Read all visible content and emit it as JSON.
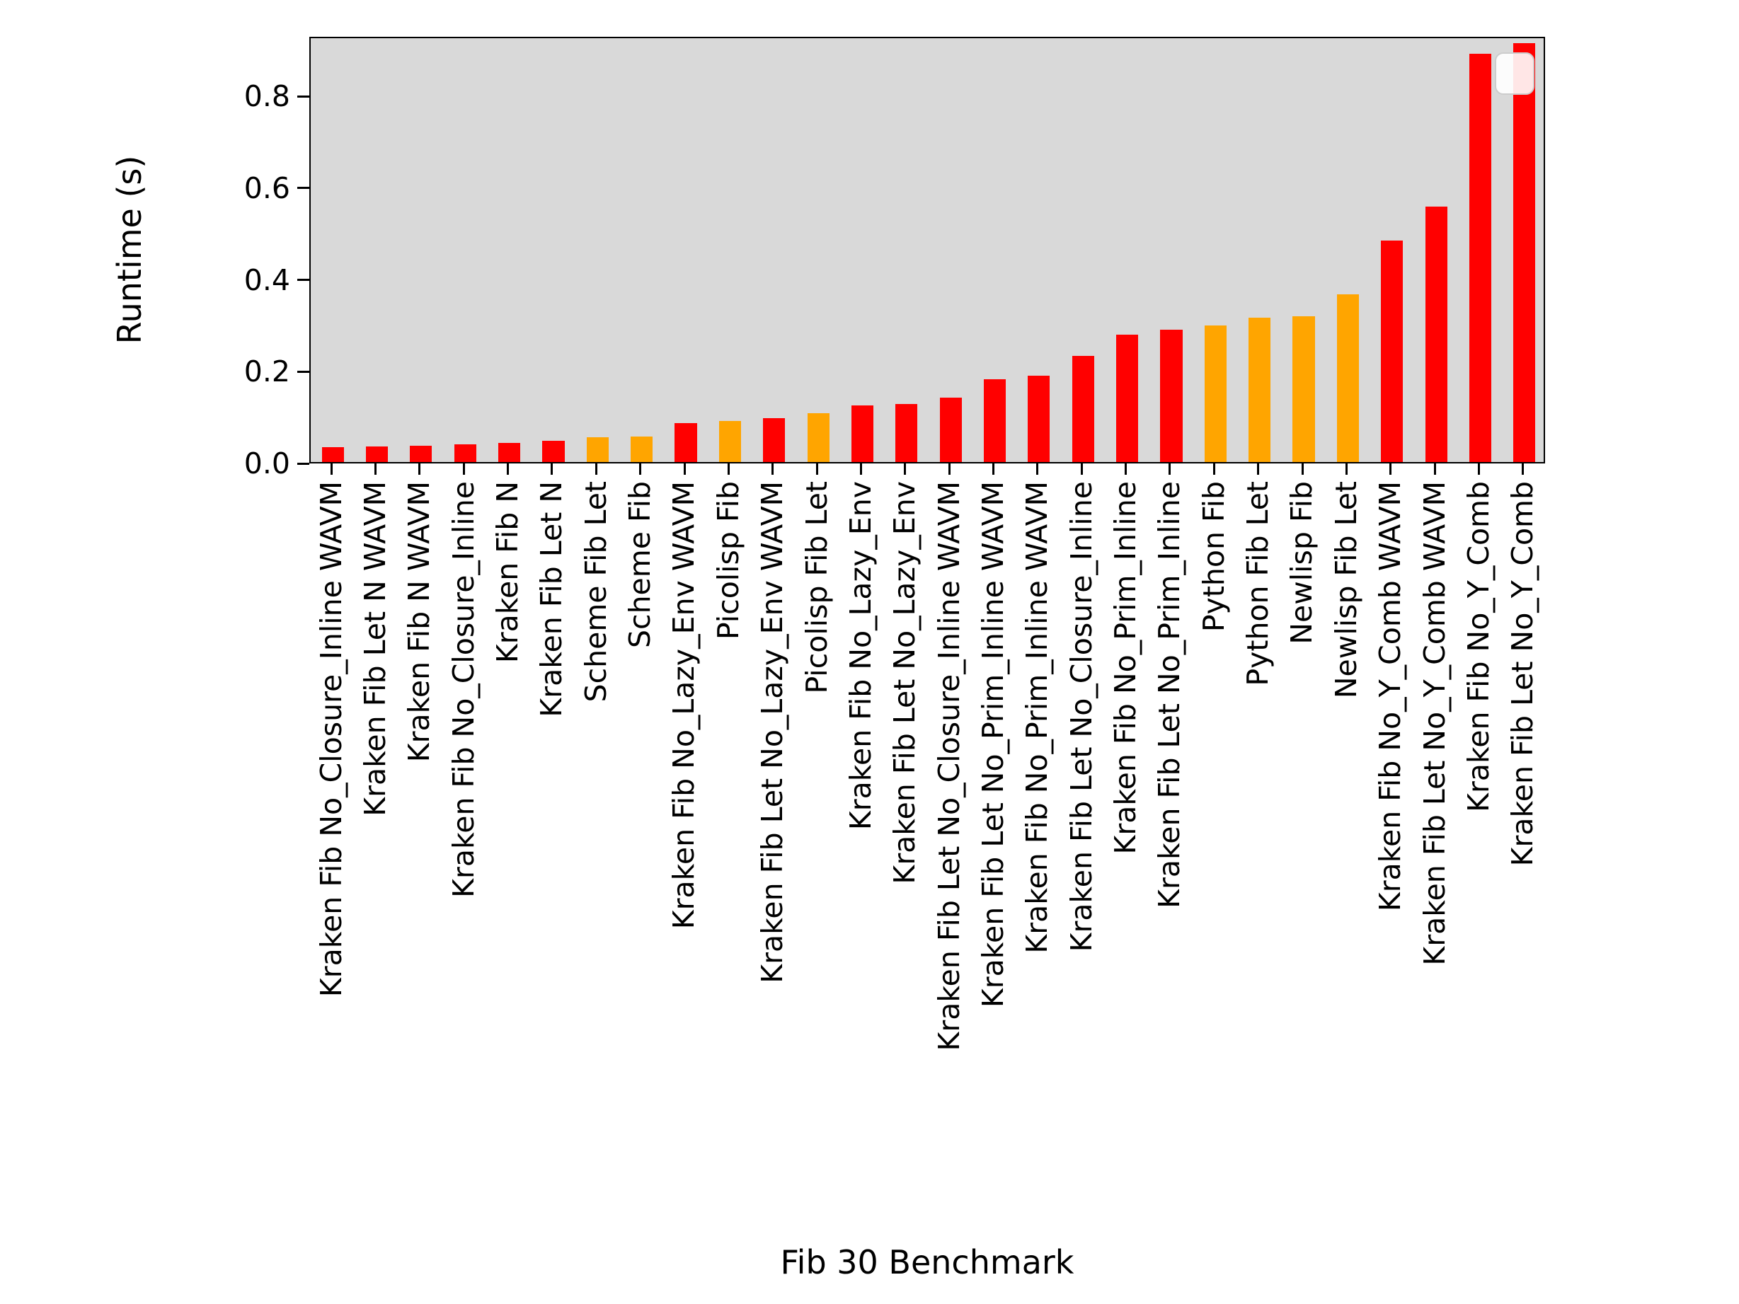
{
  "chart_data": {
    "type": "bar",
    "title": "",
    "xlabel": "Fib 30 Benchmark",
    "ylabel": "Runtime (s)",
    "ylim": [
      0,
      0.93
    ],
    "yticks": [
      0.0,
      0.2,
      0.4,
      0.6,
      0.8
    ],
    "grid": false,
    "legend_position": "upper-right",
    "legend_entries": [],
    "plot_background": "#d9d9d9",
    "palette": {
      "kraken": "#ff0000",
      "other_language": "#ffa500"
    },
    "categories": [
      "Kraken Fib No_Closure_Inline WAVM",
      "Kraken Fib Let N WAVM",
      "Kraken Fib N WAVM",
      "Kraken Fib No_Closure_Inline",
      "Kraken Fib N",
      "Kraken Fib Let N",
      "Scheme Fib Let",
      "Scheme Fib",
      "Kraken Fib No_Lazy_Env WAVM",
      "Picolisp Fib",
      "Kraken Fib Let No_Lazy_Env WAVM",
      "Picolisp Fib Let",
      "Kraken Fib No_Lazy_Env",
      "Kraken Fib Let No_Lazy_Env",
      "Kraken Fib Let No_Closure_Inline WAVM",
      "Kraken Fib Let No_Prim_Inline WAVM",
      "Kraken Fib No_Prim_Inline WAVM",
      "Kraken Fib Let No_Closure_Inline",
      "Kraken Fib No_Prim_Inline",
      "Kraken Fib Let No_Prim_Inline",
      "Python Fib",
      "Python Fib Let",
      "Newlisp Fib",
      "Newlisp Fib Let",
      "Kraken Fib No_Y_Comb WAVM",
      "Kraken Fib Let No_Y_Comb WAVM",
      "Kraken Fib No_Y_Comb",
      "Kraken Fib Let No_Y_Comb"
    ],
    "values": [
      0.033,
      0.034,
      0.036,
      0.039,
      0.042,
      0.046,
      0.054,
      0.056,
      0.086,
      0.09,
      0.096,
      0.108,
      0.124,
      0.128,
      0.141,
      0.182,
      0.19,
      0.233,
      0.28,
      0.291,
      0.3,
      0.318,
      0.321,
      0.368,
      0.487,
      0.562,
      0.897,
      0.921
    ],
    "colors": [
      "#ff0000",
      "#ff0000",
      "#ff0000",
      "#ff0000",
      "#ff0000",
      "#ff0000",
      "#ffa500",
      "#ffa500",
      "#ff0000",
      "#ffa500",
      "#ff0000",
      "#ffa500",
      "#ff0000",
      "#ff0000",
      "#ff0000",
      "#ff0000",
      "#ff0000",
      "#ff0000",
      "#ff0000",
      "#ff0000",
      "#ffa500",
      "#ffa500",
      "#ffa500",
      "#ffa500",
      "#ff0000",
      "#ff0000",
      "#ff0000",
      "#ff0000"
    ]
  }
}
